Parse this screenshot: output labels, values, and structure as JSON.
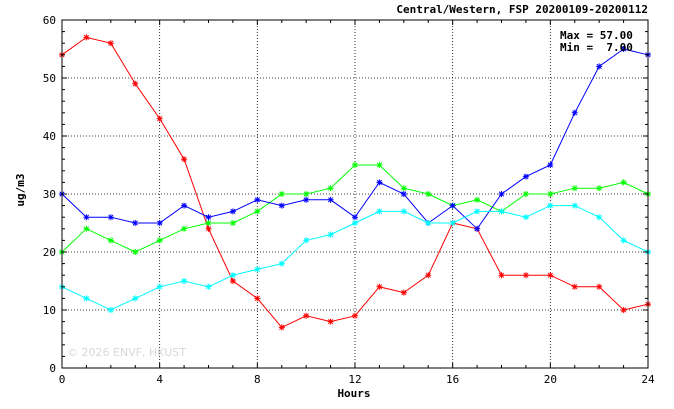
{
  "chart_data": {
    "type": "line",
    "title": "Central/Western, FSP 20200109-20200112",
    "xlabel": "Hours",
    "ylabel": "ug/m3",
    "xlim": [
      0,
      24
    ],
    "ylim": [
      0,
      60
    ],
    "xticks": [
      0,
      4,
      8,
      12,
      16,
      20,
      24
    ],
    "yticks": [
      0,
      10,
      20,
      30,
      40,
      50,
      60
    ],
    "grid": "dotted",
    "marker": "asterisk",
    "stats": {
      "max_label": "Max = 57.00",
      "min_label": "Min =  7.00"
    },
    "watermark": "© 2026  ENVF, HKUST",
    "x": [
      0,
      1,
      2,
      3,
      4,
      5,
      6,
      7,
      8,
      9,
      10,
      11,
      12,
      13,
      14,
      15,
      16,
      17,
      18,
      19,
      20,
      21,
      22,
      23,
      24
    ],
    "series": [
      {
        "color": "#ff0000",
        "values": [
          54,
          57,
          56,
          49,
          43,
          36,
          24,
          15,
          12,
          7,
          9,
          8,
          9,
          14,
          13,
          16,
          25,
          24,
          16,
          16,
          16,
          14,
          14,
          10,
          11
        ]
      },
      {
        "color": "#00ff00",
        "values": [
          20,
          24,
          22,
          20,
          22,
          24,
          25,
          25,
          27,
          30,
          30,
          31,
          35,
          35,
          31,
          30,
          28,
          29,
          27,
          30,
          30,
          31,
          31,
          32,
          30
        ]
      },
      {
        "color": "#0000ff",
        "values": [
          30,
          26,
          26,
          25,
          25,
          28,
          26,
          27,
          29,
          28,
          29,
          29,
          26,
          32,
          30,
          25,
          28,
          24,
          30,
          33,
          35,
          44,
          52,
          55,
          54
        ]
      },
      {
        "color": "#00ffff",
        "values": [
          14,
          12,
          10,
          12,
          14,
          15,
          14,
          16,
          17,
          18,
          22,
          23,
          25,
          27,
          27,
          25,
          25,
          27,
          27,
          26,
          28,
          28,
          26,
          22,
          20
        ]
      }
    ]
  }
}
